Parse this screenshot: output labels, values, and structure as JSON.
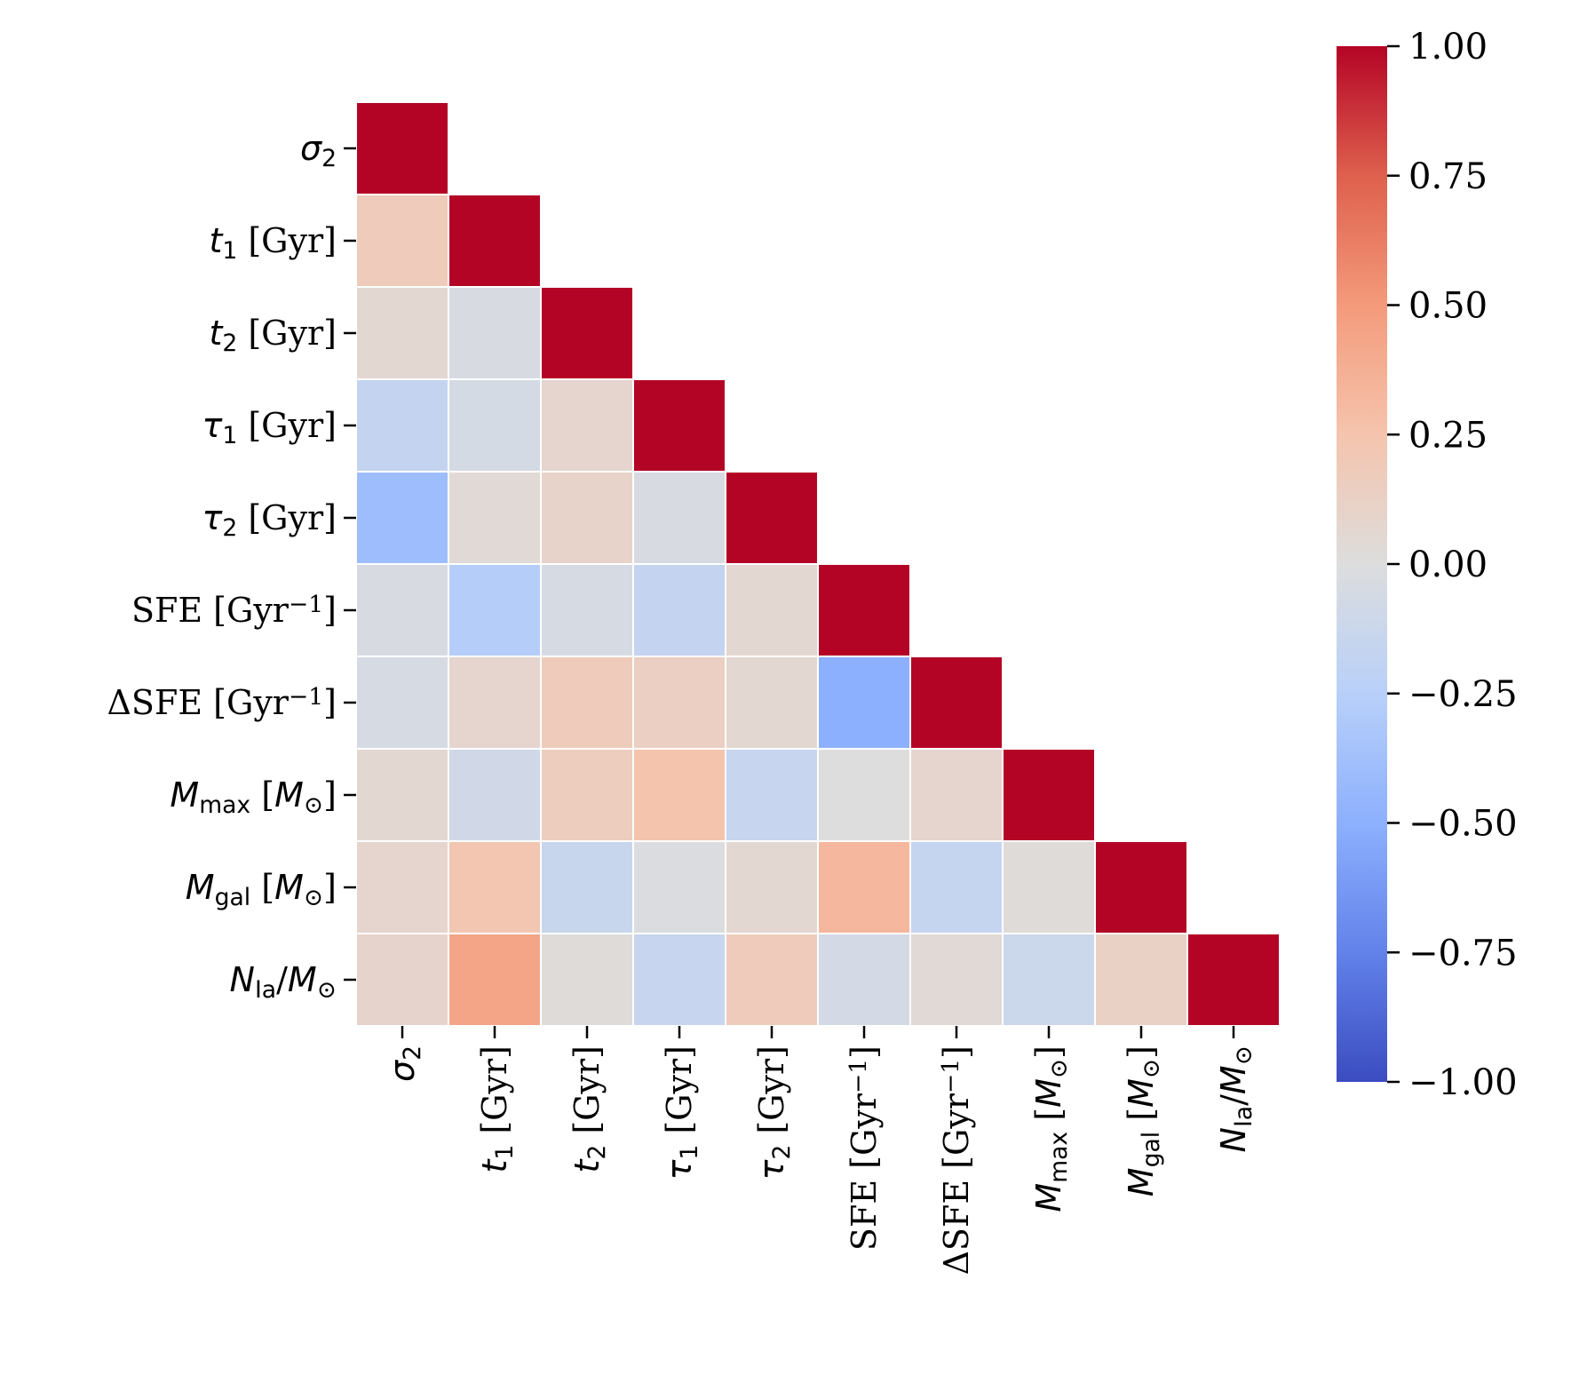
{
  "chart_data": {
    "type": "heatmap",
    "title": "",
    "xlabel": "",
    "ylabel": "",
    "colormap": "coolwarm",
    "vmin": -1.0,
    "vmax": 1.0,
    "triangle": "lower",
    "labels": [
      {
        "base": "σ",
        "sub": "2",
        "unit": ""
      },
      {
        "base": "t",
        "sub": "1",
        "unit": " [Gyr]"
      },
      {
        "base": "t",
        "sub": "2",
        "unit": " [Gyr]"
      },
      {
        "base": "τ",
        "sub": "1",
        "unit": " [Gyr]"
      },
      {
        "base": "τ",
        "sub": "2",
        "unit": " [Gyr]"
      },
      {
        "base": "SFE [Gyr",
        "sup": "−1",
        "unit": "]"
      },
      {
        "base": "ΔSFE [Gyr",
        "sup": "−1",
        "unit": "]"
      },
      {
        "base": "M",
        "sub": "max",
        "unit": " [M",
        "unitSub": "⊙",
        "unitEnd": "]"
      },
      {
        "base": "M",
        "sub": "gal",
        "unit": " [M",
        "unitSub": "⊙",
        "unitEnd": "]"
      },
      {
        "base": "N",
        "sub": "Ia",
        "unit": "/M",
        "unitSub": "⊙",
        "unitEnd": ""
      }
    ],
    "values": [
      [
        1.0
      ],
      [
        0.18,
        1.0
      ],
      [
        0.06,
        -0.04,
        1.0
      ],
      [
        -0.17,
        -0.06,
        0.08,
        1.0
      ],
      [
        -0.4,
        0.04,
        0.1,
        -0.04,
        1.0
      ],
      [
        -0.04,
        -0.27,
        -0.05,
        -0.17,
        0.06,
        1.0
      ],
      [
        -0.05,
        0.08,
        0.18,
        0.14,
        0.06,
        -0.5,
        1.0
      ],
      [
        0.06,
        -0.09,
        0.16,
        0.25,
        -0.15,
        0.0,
        0.08,
        1.0
      ],
      [
        0.08,
        0.23,
        -0.14,
        -0.02,
        0.06,
        0.33,
        -0.16,
        0.02,
        1.0
      ],
      [
        0.09,
        0.44,
        0.02,
        -0.15,
        0.18,
        -0.07,
        0.04,
        -0.12,
        0.12,
        1.0
      ]
    ],
    "colorbar": {
      "ticks": [
        1.0,
        0.75,
        0.5,
        0.25,
        0.0,
        -0.25,
        -0.5,
        -0.75,
        -1.0
      ],
      "tick_labels": [
        "1.00",
        "0.75",
        "0.50",
        "0.25",
        "0.00",
        "−0.25",
        "−0.50",
        "−0.75",
        "−1.00"
      ]
    }
  }
}
